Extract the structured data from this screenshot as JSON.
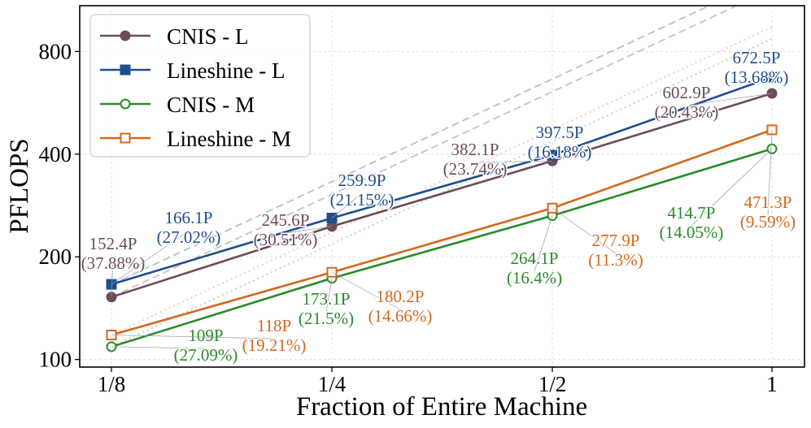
{
  "chart_data": {
    "type": "line",
    "x_categories": [
      "1/8",
      "1/4",
      "1/2",
      "1"
    ],
    "x_values": [
      0.125,
      0.25,
      0.5,
      1
    ],
    "x_scale": "log2",
    "y_scale": "log",
    "ylim": [
      95,
      1090
    ],
    "xlabel": "Fraction of Entire Machine",
    "ylabel": "PFLOPS",
    "y_ticks": [
      100,
      200,
      400,
      800
    ],
    "grid": true,
    "legend_position": "top-left",
    "series": [
      {
        "name": "CNIS - L",
        "values": [
          152.4,
          245.6,
          382.1,
          602.9
        ],
        "color": "#6b4c5a",
        "marker": "circle-filled",
        "labels": [
          "152.4P\n(37.88%)",
          "245.6P\n(30.51%)",
          "382.1P\n(23.74%)",
          "602.9P\n(20.43%)"
        ]
      },
      {
        "name": "Lineshine - L",
        "values": [
          166.1,
          259.9,
          397.5,
          672.5
        ],
        "color": "#1f4e8c",
        "marker": "square-filled",
        "labels": [
          "166.1P\n(27.02%)",
          "259.9P\n(21.15%)",
          "397.5P\n(16.18%)",
          "672.5P\n(13.68%)"
        ]
      },
      {
        "name": "CNIS - M",
        "values": [
          109,
          173.1,
          264.1,
          414.7
        ],
        "color": "#2a8a2a",
        "marker": "circle-open",
        "labels": [
          "109P\n(27.09%)",
          "173.1P\n(21.5%)",
          "264.1P\n(16.4%)",
          "414.7P\n(14.05%)"
        ]
      },
      {
        "name": "Lineshine - M",
        "values": [
          118,
          180.2,
          277.9,
          471.3
        ],
        "color": "#d2691e",
        "marker": "square-open",
        "labels": [
          "118P\n(19.21%)",
          "180.2P\n(14.66%)",
          "277.9P\n(11.3%)",
          "471.3P\n(9.59%)"
        ]
      }
    ],
    "reference_lines": [
      {
        "values": [
          152.4,
          304.8,
          609.6,
          1219.2
        ],
        "color": "#6b4c5a",
        "style": "dashed"
      },
      {
        "values": [
          166.1,
          332.2,
          664.4,
          1328.8
        ],
        "color": "#1f4e8c",
        "style": "dashed"
      },
      {
        "values": [
          109,
          218,
          436,
          872
        ],
        "color": "#2a8a2a",
        "style": "dotted"
      },
      {
        "values": [
          118,
          236,
          472,
          944
        ],
        "color": "#d2691e",
        "style": "dotted"
      }
    ]
  }
}
